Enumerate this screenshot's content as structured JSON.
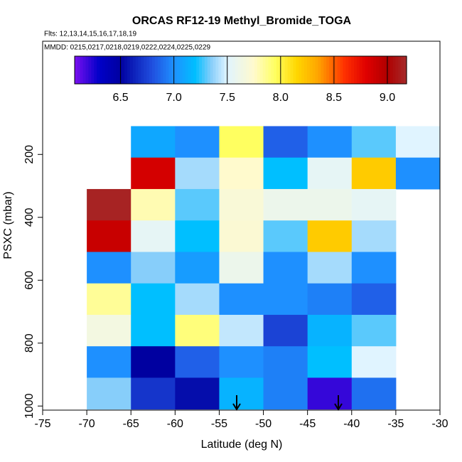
{
  "chart_data": {
    "type": "heatmap",
    "title": "ORCAS RF12-19 Methyl_Bromide_TOGA",
    "subtitle": "Flts: 12,13,14,15,16,17,18,19",
    "annotation": "MMDD: 0215,0217,0218,0219,0222,0224,0225,0229",
    "xlabel": "Latitude (deg N)",
    "ylabel": "PSXC (mbar)",
    "xlim": [
      -75,
      -30
    ],
    "xticks": [
      -75,
      -70,
      -65,
      -60,
      -55,
      -50,
      -45,
      -40,
      -35,
      -30
    ],
    "ylim": [
      1013,
      -160
    ],
    "yticks": [
      200,
      400,
      600,
      800,
      1000
    ],
    "x_edges": [
      -70,
      -65,
      -60,
      -55,
      -50,
      -45,
      -40,
      -35,
      -30
    ],
    "y_edges": [
      110,
      210,
      310,
      410,
      510,
      610,
      710,
      810,
      910,
      1010
    ],
    "values": [
      [
        null,
        7.1,
        7.0,
        7.95,
        6.85,
        7.0,
        7.3,
        7.5
      ],
      [
        null,
        8.85,
        7.4,
        7.75,
        7.2,
        7.55,
        8.2,
        7.0
      ],
      [
        9.15,
        7.8,
        7.3,
        7.7,
        7.6,
        7.6,
        7.55,
        null
      ],
      [
        8.9,
        7.55,
        7.2,
        7.72,
        7.3,
        8.2,
        7.4,
        null
      ],
      [
        7.0,
        7.35,
        7.05,
        7.6,
        7.0,
        7.4,
        7.0,
        null
      ],
      [
        7.85,
        7.2,
        7.4,
        7.0,
        7.0,
        6.95,
        6.85,
        null
      ],
      [
        7.65,
        7.2,
        7.9,
        7.45,
        6.75,
        7.15,
        7.3,
        null
      ],
      [
        7.0,
        6.5,
        6.85,
        7.0,
        6.95,
        7.2,
        7.5,
        null
      ],
      [
        7.35,
        6.7,
        6.55,
        7.15,
        6.95,
        6.2,
        6.9,
        null
      ]
    ],
    "colorbar_lim": [
      6.07,
      9.18
    ],
    "colorbar_ticks": [
      6.5,
      {
        "value": 7,
        "label": "7.0"
      },
      7.5,
      {
        "value": 8,
        "label": "8.0"
      },
      8.5,
      {
        "value": 9,
        "label": "9.0"
      }
    ],
    "colorscale": [
      [
        6.07,
        "#7b10f0"
      ],
      [
        6.3,
        "#0000c8"
      ],
      [
        6.5,
        "#0000a0"
      ],
      [
        6.8,
        "#2050e0"
      ],
      [
        7.0,
        "#1e90ff"
      ],
      [
        7.2,
        "#00bfff"
      ],
      [
        7.35,
        "#87cefa"
      ],
      [
        7.5,
        "#e0f4ff"
      ],
      [
        7.75,
        "#fffacd"
      ],
      [
        7.95,
        "#ffff60"
      ],
      [
        8.15,
        "#ffd700"
      ],
      [
        8.35,
        "#ffa500"
      ],
      [
        8.6,
        "#ff3000"
      ],
      [
        8.8,
        "#e00000"
      ],
      [
        9.0,
        "#b00000"
      ],
      [
        9.18,
        "#a52a2a"
      ]
    ]
  }
}
